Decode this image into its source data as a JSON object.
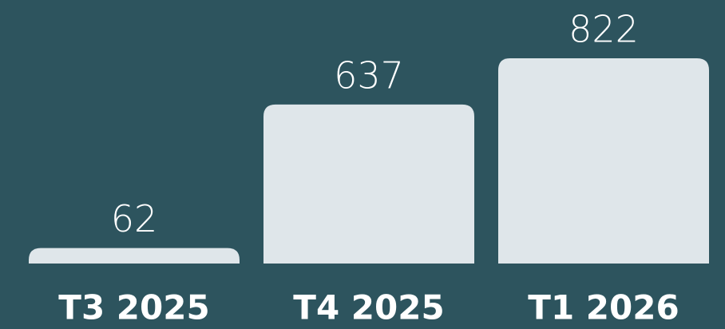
{
  "chart_data": {
    "type": "bar",
    "categories": [
      "T3 2025",
      "T4 2025",
      "T1 2026"
    ],
    "values": [
      62,
      637,
      822
    ],
    "color": "#dfe6ea",
    "background": "#2d545e"
  }
}
